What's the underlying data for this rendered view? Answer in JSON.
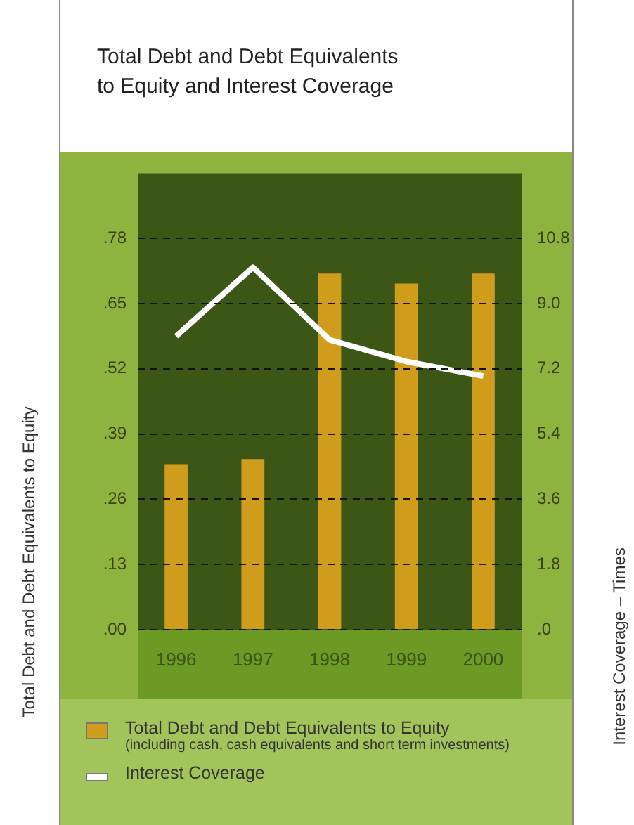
{
  "chart_data": {
    "type": "bar",
    "title": "Total Debt and Debt Equivalents\nto Equity and Interest Coverage",
    "ylabel": "Total Debt and Debt Equivalents to Equity",
    "y2label": "Interest Coverage – Times",
    "categories": [
      "1996",
      "1997",
      "1998",
      "1999",
      "2000"
    ],
    "series": [
      {
        "name": "Total Debt and Debt Equivalents to Equity",
        "color": "#cf9c1c",
        "values": [
          0.33,
          0.34,
          0.71,
          0.69,
          0.71
        ]
      },
      {
        "name": "Interest Coverage",
        "type": "line",
        "axis": "y2",
        "color": "#ffffff",
        "values": [
          8.1,
          10.0,
          8.0,
          7.4,
          7.0
        ]
      }
    ],
    "ylim": [
      0,
      0.91
    ],
    "yticks": [
      {
        "value": 0,
        "label": ".00"
      },
      {
        "value": 0.13,
        "label": ".13"
      },
      {
        "value": 0.26,
        "label": ".26"
      },
      {
        "value": 0.39,
        "label": ".39"
      },
      {
        "value": 0.52,
        "label": ".52"
      },
      {
        "value": 0.65,
        "label": ".65"
      },
      {
        "value": 0.78,
        "label": ".78"
      }
    ],
    "y2lim": [
      0,
      12.6
    ],
    "y2ticks": [
      {
        "value": 0,
        "label": ".0"
      },
      1.8,
      3.6,
      5.4,
      7.2,
      {
        "value": 9,
        "label": "9.0"
      },
      10.8
    ],
    "grid": "y",
    "legend": "bottom",
    "annotations": [
      "(including cash, cash equivalents and short term investments)"
    ]
  }
}
